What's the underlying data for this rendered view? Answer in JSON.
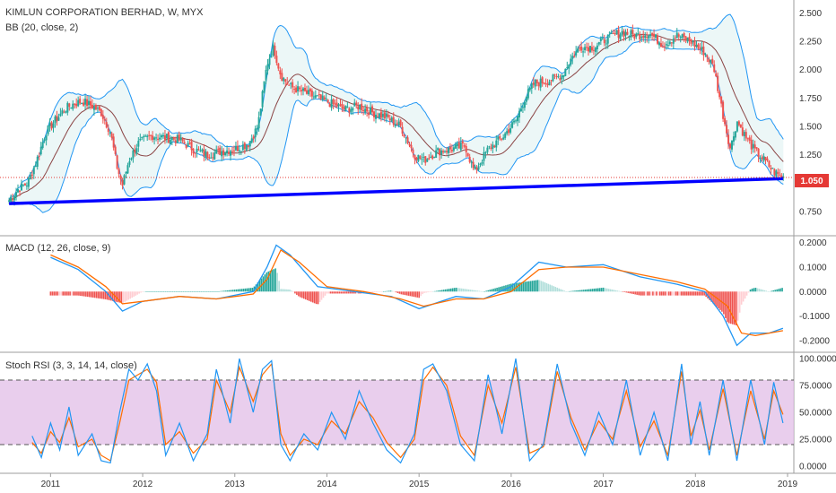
{
  "header": {
    "title": "KIMLUN CORPORATION BERHAD, W, MYX",
    "bb_label": "BB (20, close, 2)",
    "macd_label": "MACD (12, 26, close, 9)",
    "stoch_label": "Stoch RSI (3, 3, 14, 14, close)"
  },
  "colors": {
    "up": "#26a69a",
    "down": "#ef5350",
    "bb": "#2196f3",
    "bb_mid": "#8b4545",
    "bb_fill": "#e0f2f1",
    "trend": "#0000ff",
    "price_line": "#e53935",
    "macd": "#2196f3",
    "signal": "#ff6d00",
    "stoch_k": "#2196f3",
    "stoch_d": "#ff6d00",
    "stoch_band": "#e1bee7"
  },
  "price_tag": "1.050",
  "price_axis": {
    "ticks": [
      "2.500",
      "2.250",
      "2.000",
      "1.750",
      "1.500",
      "1.250",
      "1.000",
      "0.750"
    ]
  },
  "macd_axis": {
    "ticks": [
      "0.2000",
      "0.1000",
      "0.0000",
      "-0.1000",
      "-0.2000"
    ]
  },
  "stoch_axis": {
    "ticks": [
      "100.0000",
      "75.0000",
      "50.0000",
      "25.0000",
      "0.0000"
    ]
  },
  "time_axis": {
    "ticks": [
      "2011",
      "2012",
      "2013",
      "2014",
      "2015",
      "2016",
      "2017",
      "2018",
      "2019"
    ]
  },
  "chart_data": [
    {
      "type": "candlestick",
      "title": "KIMLUN CORPORATION BERHAD, W, MYX",
      "indicator": "BB (20, close, 2)",
      "x_range": [
        2010.5,
        2019.0
      ],
      "ylim": [
        0.6,
        2.55
      ],
      "last_price": 1.05,
      "trendline": {
        "from": [
          2010.55,
          0.82
        ],
        "to": [
          2018.95,
          1.04
        ]
      },
      "close_path": [
        [
          2010.55,
          0.85
        ],
        [
          2010.65,
          0.95
        ],
        [
          2010.75,
          1.0
        ],
        [
          2010.85,
          1.2
        ],
        [
          2010.95,
          1.45
        ],
        [
          2011.05,
          1.55
        ],
        [
          2011.15,
          1.65
        ],
        [
          2011.25,
          1.7
        ],
        [
          2011.35,
          1.72
        ],
        [
          2011.45,
          1.68
        ],
        [
          2011.55,
          1.62
        ],
        [
          2011.65,
          1.45
        ],
        [
          2011.72,
          1.15
        ],
        [
          2011.78,
          0.98
        ],
        [
          2011.85,
          1.2
        ],
        [
          2011.95,
          1.35
        ],
        [
          2012.1,
          1.42
        ],
        [
          2012.25,
          1.4
        ],
        [
          2012.4,
          1.38
        ],
        [
          2012.55,
          1.3
        ],
        [
          2012.7,
          1.25
        ],
        [
          2012.85,
          1.28
        ],
        [
          2013.0,
          1.3
        ],
        [
          2013.15,
          1.35
        ],
        [
          2013.25,
          1.5
        ],
        [
          2013.35,
          2.05
        ],
        [
          2013.42,
          2.2
        ],
        [
          2013.5,
          1.95
        ],
        [
          2013.6,
          1.85
        ],
        [
          2013.75,
          1.8
        ],
        [
          2013.9,
          1.75
        ],
        [
          2014.05,
          1.7
        ],
        [
          2014.2,
          1.65
        ],
        [
          2014.35,
          1.68
        ],
        [
          2014.5,
          1.62
        ],
        [
          2014.65,
          1.58
        ],
        [
          2014.8,
          1.5
        ],
        [
          2014.95,
          1.25
        ],
        [
          2015.05,
          1.2
        ],
        [
          2015.2,
          1.28
        ],
        [
          2015.35,
          1.3
        ],
        [
          2015.5,
          1.33
        ],
        [
          2015.6,
          1.1
        ],
        [
          2015.75,
          1.3
        ],
        [
          2015.9,
          1.4
        ],
        [
          2016.05,
          1.55
        ],
        [
          2016.15,
          1.75
        ],
        [
          2016.25,
          1.88
        ],
        [
          2016.4,
          1.9
        ],
        [
          2016.55,
          1.95
        ],
        [
          2016.65,
          2.1
        ],
        [
          2016.75,
          2.2
        ],
        [
          2016.9,
          2.2
        ],
        [
          2017.05,
          2.28
        ],
        [
          2017.2,
          2.33
        ],
        [
          2017.35,
          2.3
        ],
        [
          2017.5,
          2.32
        ],
        [
          2017.65,
          2.22
        ],
        [
          2017.8,
          2.3
        ],
        [
          2017.95,
          2.25
        ],
        [
          2018.1,
          2.15
        ],
        [
          2018.2,
          2.02
        ],
        [
          2018.3,
          1.6
        ],
        [
          2018.38,
          1.3
        ],
        [
          2018.45,
          1.55
        ],
        [
          2018.55,
          1.4
        ],
        [
          2018.65,
          1.28
        ],
        [
          2018.75,
          1.2
        ],
        [
          2018.85,
          1.1
        ],
        [
          2018.95,
          1.05
        ]
      ]
    },
    {
      "type": "line",
      "indicator": "MACD (12, 26, close, 9)",
      "ylim": [
        -0.23,
        0.21
      ],
      "series": [
        {
          "name": "MACD",
          "points": [
            [
              2011.0,
              0.14
            ],
            [
              2011.3,
              0.09
            ],
            [
              2011.6,
              0.0
            ],
            [
              2011.78,
              -0.08
            ],
            [
              2012.0,
              -0.04
            ],
            [
              2012.4,
              -0.02
            ],
            [
              2012.8,
              -0.03
            ],
            [
              2013.2,
              0.0
            ],
            [
              2013.35,
              0.1
            ],
            [
              2013.45,
              0.19
            ],
            [
              2013.6,
              0.15
            ],
            [
              2013.9,
              0.02
            ],
            [
              2014.3,
              0.0
            ],
            [
              2014.7,
              -0.02
            ],
            [
              2015.0,
              -0.07
            ],
            [
              2015.4,
              -0.02
            ],
            [
              2015.7,
              -0.03
            ],
            [
              2016.0,
              0.02
            ],
            [
              2016.3,
              0.12
            ],
            [
              2016.6,
              0.1
            ],
            [
              2017.0,
              0.11
            ],
            [
              2017.4,
              0.06
            ],
            [
              2017.8,
              0.03
            ],
            [
              2018.1,
              0.0
            ],
            [
              2018.3,
              -0.1
            ],
            [
              2018.45,
              -0.22
            ],
            [
              2018.6,
              -0.17
            ],
            [
              2018.8,
              -0.17
            ],
            [
              2018.95,
              -0.15
            ]
          ]
        },
        {
          "name": "Signal",
          "points": [
            [
              2011.0,
              0.15
            ],
            [
              2011.3,
              0.1
            ],
            [
              2011.6,
              0.02
            ],
            [
              2011.78,
              -0.05
            ],
            [
              2012.0,
              -0.04
            ],
            [
              2012.4,
              -0.02
            ],
            [
              2012.8,
              -0.03
            ],
            [
              2013.2,
              -0.01
            ],
            [
              2013.35,
              0.05
            ],
            [
              2013.5,
              0.17
            ],
            [
              2013.7,
              0.12
            ],
            [
              2014.0,
              0.02
            ],
            [
              2014.4,
              0.0
            ],
            [
              2014.8,
              -0.03
            ],
            [
              2015.05,
              -0.06
            ],
            [
              2015.4,
              -0.03
            ],
            [
              2015.7,
              -0.03
            ],
            [
              2016.0,
              0.0
            ],
            [
              2016.3,
              0.09
            ],
            [
              2016.6,
              0.1
            ],
            [
              2017.0,
              0.1
            ],
            [
              2017.4,
              0.07
            ],
            [
              2017.8,
              0.04
            ],
            [
              2018.1,
              0.01
            ],
            [
              2018.35,
              -0.06
            ],
            [
              2018.5,
              -0.17
            ],
            [
              2018.65,
              -0.18
            ],
            [
              2018.8,
              -0.17
            ],
            [
              2018.95,
              -0.16
            ]
          ]
        }
      ]
    },
    {
      "type": "line",
      "indicator": "Stoch RSI (3, 3, 14, 14, close)",
      "ylim": [
        0,
        100
      ],
      "band": [
        20,
        80
      ],
      "series": [
        {
          "name": "K",
          "points": [
            [
              2010.8,
              28
            ],
            [
              2010.9,
              8
            ],
            [
              2011.0,
              40
            ],
            [
              2011.1,
              15
            ],
            [
              2011.2,
              55
            ],
            [
              2011.3,
              10
            ],
            [
              2011.45,
              30
            ],
            [
              2011.55,
              5
            ],
            [
              2011.65,
              3
            ],
            [
              2011.75,
              50
            ],
            [
              2011.85,
              90
            ],
            [
              2011.95,
              80
            ],
            [
              2012.05,
              95
            ],
            [
              2012.15,
              70
            ],
            [
              2012.25,
              10
            ],
            [
              2012.4,
              40
            ],
            [
              2012.55,
              5
            ],
            [
              2012.7,
              30
            ],
            [
              2012.8,
              90
            ],
            [
              2012.95,
              40
            ],
            [
              2013.05,
              100
            ],
            [
              2013.2,
              50
            ],
            [
              2013.3,
              90
            ],
            [
              2013.4,
              98
            ],
            [
              2013.5,
              20
            ],
            [
              2013.6,
              5
            ],
            [
              2013.75,
              30
            ],
            [
              2013.9,
              15
            ],
            [
              2014.05,
              50
            ],
            [
              2014.2,
              25
            ],
            [
              2014.35,
              70
            ],
            [
              2014.5,
              40
            ],
            [
              2014.65,
              15
            ],
            [
              2014.8,
              3
            ],
            [
              2014.95,
              30
            ],
            [
              2015.05,
              90
            ],
            [
              2015.15,
              95
            ],
            [
              2015.3,
              70
            ],
            [
              2015.45,
              20
            ],
            [
              2015.6,
              5
            ],
            [
              2015.75,
              85
            ],
            [
              2015.9,
              30
            ],
            [
              2016.05,
              100
            ],
            [
              2016.2,
              5
            ],
            [
              2016.35,
              20
            ],
            [
              2016.5,
              95
            ],
            [
              2016.65,
              40
            ],
            [
              2016.8,
              10
            ],
            [
              2016.95,
              50
            ],
            [
              2017.1,
              20
            ],
            [
              2017.25,
              80
            ],
            [
              2017.4,
              10
            ],
            [
              2017.55,
              50
            ],
            [
              2017.7,
              5
            ],
            [
              2017.85,
              95
            ],
            [
              2017.95,
              20
            ],
            [
              2018.05,
              60
            ],
            [
              2018.15,
              10
            ],
            [
              2018.3,
              80
            ],
            [
              2018.45,
              5
            ],
            [
              2018.6,
              80
            ],
            [
              2018.75,
              20
            ],
            [
              2018.85,
              78
            ],
            [
              2018.95,
              40
            ]
          ]
        },
        {
          "name": "D",
          "points": [
            [
              2010.8,
              22
            ],
            [
              2010.9,
              12
            ],
            [
              2011.0,
              32
            ],
            [
              2011.1,
              22
            ],
            [
              2011.2,
              45
            ],
            [
              2011.3,
              18
            ],
            [
              2011.45,
              25
            ],
            [
              2011.55,
              10
            ],
            [
              2011.65,
              5
            ],
            [
              2011.75,
              40
            ],
            [
              2011.85,
              80
            ],
            [
              2011.95,
              85
            ],
            [
              2012.05,
              90
            ],
            [
              2012.15,
              78
            ],
            [
              2012.25,
              20
            ],
            [
              2012.4,
              32
            ],
            [
              2012.55,
              12
            ],
            [
              2012.7,
              25
            ],
            [
              2012.8,
              80
            ],
            [
              2012.95,
              50
            ],
            [
              2013.05,
              92
            ],
            [
              2013.2,
              60
            ],
            [
              2013.3,
              85
            ],
            [
              2013.4,
              95
            ],
            [
              2013.5,
              30
            ],
            [
              2013.6,
              10
            ],
            [
              2013.75,
              25
            ],
            [
              2013.9,
              20
            ],
            [
              2014.05,
              42
            ],
            [
              2014.2,
              30
            ],
            [
              2014.35,
              60
            ],
            [
              2014.5,
              45
            ],
            [
              2014.65,
              22
            ],
            [
              2014.8,
              8
            ],
            [
              2014.95,
              25
            ],
            [
              2015.05,
              80
            ],
            [
              2015.15,
              92
            ],
            [
              2015.3,
              75
            ],
            [
              2015.45,
              28
            ],
            [
              2015.6,
              10
            ],
            [
              2015.75,
              75
            ],
            [
              2015.9,
              40
            ],
            [
              2016.05,
              92
            ],
            [
              2016.2,
              12
            ],
            [
              2016.35,
              18
            ],
            [
              2016.5,
              88
            ],
            [
              2016.65,
              45
            ],
            [
              2016.8,
              15
            ],
            [
              2016.95,
              42
            ],
            [
              2017.1,
              25
            ],
            [
              2017.25,
              70
            ],
            [
              2017.4,
              18
            ],
            [
              2017.55,
              42
            ],
            [
              2017.7,
              10
            ],
            [
              2017.85,
              88
            ],
            [
              2017.95,
              28
            ],
            [
              2018.05,
              52
            ],
            [
              2018.15,
              15
            ],
            [
              2018.3,
              72
            ],
            [
              2018.45,
              10
            ],
            [
              2018.6,
              70
            ],
            [
              2018.75,
              25
            ],
            [
              2018.85,
              70
            ],
            [
              2018.95,
              48
            ]
          ]
        }
      ]
    }
  ]
}
